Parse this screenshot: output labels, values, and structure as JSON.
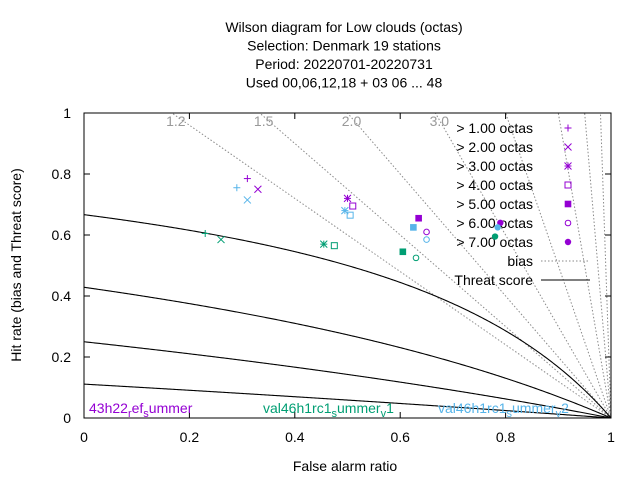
{
  "chart_data": {
    "type": "scatter",
    "title": [
      "Wilson diagram  for Low clouds (octas)",
      "Selection: Denmark      19 stations",
      "Period: 20220701-20220731",
      "Used  00,06,12,18  + 03 06 ... 48"
    ],
    "xlabel": "False alarm ratio",
    "ylabel": "Hit rate (bias and Threat score)",
    "xlim": [
      0,
      1
    ],
    "ylim": [
      0,
      1
    ],
    "x_ticks": [
      0,
      0.2,
      0.4,
      0.6,
      0.8,
      1
    ],
    "x_tick_labels": [
      "0",
      "0.2",
      "0.4",
      "0.6",
      "0.8",
      "1"
    ],
    "y_ticks": [
      0,
      0.2,
      0.4,
      0.6,
      0.8,
      1
    ],
    "y_tick_labels": [
      "0",
      "0.2",
      "0.4",
      "0.6",
      "0.8",
      "1"
    ],
    "bias_lines": [
      1.2,
      1.5,
      2.0,
      3.0,
      5,
      10,
      20,
      50
    ],
    "bias_labels": [
      {
        "value": 1.2,
        "text": "1.2"
      },
      {
        "value": 1.5,
        "text": "1.5"
      },
      {
        "value": 2.0,
        "text": "2.0"
      },
      {
        "value": 3.0,
        "text": "3.0"
      }
    ],
    "threat_score_lines": [
      0.1,
      0.2,
      0.3,
      0.4,
      0.5,
      0.6,
      0.7,
      0.8,
      0.9
    ],
    "legend": {
      "placement": "top-right",
      "entries": [
        {
          "label": "> 1.00 octas",
          "marker": "plus"
        },
        {
          "label": "> 2.00 octas",
          "marker": "cross"
        },
        {
          "label": "> 3.00 octas",
          "marker": "star"
        },
        {
          "label": "> 4.00 octas",
          "marker": "open-square"
        },
        {
          "label": "> 5.00 octas",
          "marker": "filled-square"
        },
        {
          "label": "> 6.00 octas",
          "marker": "open-circle"
        },
        {
          "label": "> 7.00 octas",
          "marker": "filled-circle"
        }
      ],
      "line_entries": [
        {
          "label": "bias",
          "style": "dotted"
        },
        {
          "label": "Threat score",
          "style": "solid"
        }
      ]
    },
    "series": [
      {
        "name": "43h22_ref_summer",
        "color": "#9400d3",
        "points": [
          {
            "x": 0.31,
            "y": 0.785,
            "marker": "plus"
          },
          {
            "x": 0.33,
            "y": 0.75,
            "marker": "cross"
          },
          {
            "x": 0.5,
            "y": 0.72,
            "marker": "star"
          },
          {
            "x": 0.51,
            "y": 0.695,
            "marker": "open-square"
          },
          {
            "x": 0.635,
            "y": 0.655,
            "marker": "filled-square"
          },
          {
            "x": 0.65,
            "y": 0.61,
            "marker": "open-circle"
          },
          {
            "x": 0.79,
            "y": 0.64,
            "marker": "filled-circle"
          }
        ]
      },
      {
        "name": "val46h1rc1_summer_v1",
        "color": "#009e73",
        "points": [
          {
            "x": 0.23,
            "y": 0.605,
            "marker": "plus"
          },
          {
            "x": 0.26,
            "y": 0.585,
            "marker": "cross"
          },
          {
            "x": 0.455,
            "y": 0.57,
            "marker": "star"
          },
          {
            "x": 0.475,
            "y": 0.565,
            "marker": "open-square"
          },
          {
            "x": 0.605,
            "y": 0.545,
            "marker": "filled-square"
          },
          {
            "x": 0.63,
            "y": 0.525,
            "marker": "open-circle"
          },
          {
            "x": 0.78,
            "y": 0.595,
            "marker": "filled-circle"
          }
        ]
      },
      {
        "name": "val46h1rc1_summer_v2",
        "color": "#56b4e9",
        "points": [
          {
            "x": 0.29,
            "y": 0.755,
            "marker": "plus"
          },
          {
            "x": 0.31,
            "y": 0.715,
            "marker": "cross"
          },
          {
            "x": 0.495,
            "y": 0.68,
            "marker": "star"
          },
          {
            "x": 0.505,
            "y": 0.665,
            "marker": "open-square"
          },
          {
            "x": 0.625,
            "y": 0.625,
            "marker": "filled-square"
          },
          {
            "x": 0.65,
            "y": 0.585,
            "marker": "open-circle"
          },
          {
            "x": 0.785,
            "y": 0.625,
            "marker": "filled-circle"
          }
        ]
      }
    ],
    "series_labels": [
      {
        "base": "43h22",
        "sub1": "r",
        "mid1": "ef",
        "sub2": "s",
        "mid2": "ummer",
        "sub3": "",
        "tail": "",
        "color": "#9400d3"
      },
      {
        "base": "val46h1rc1",
        "sub1": "",
        "mid1": "",
        "sub2": "s",
        "mid2": "ummer",
        "sub3": "v",
        "tail": "1",
        "color": "#009e73"
      },
      {
        "base": "val46h1rc1",
        "sub1": "",
        "mid1": "",
        "sub2": "s",
        "mid2": "ummer",
        "sub3": "v",
        "tail": "2",
        "color": "#56b4e9"
      }
    ]
  }
}
